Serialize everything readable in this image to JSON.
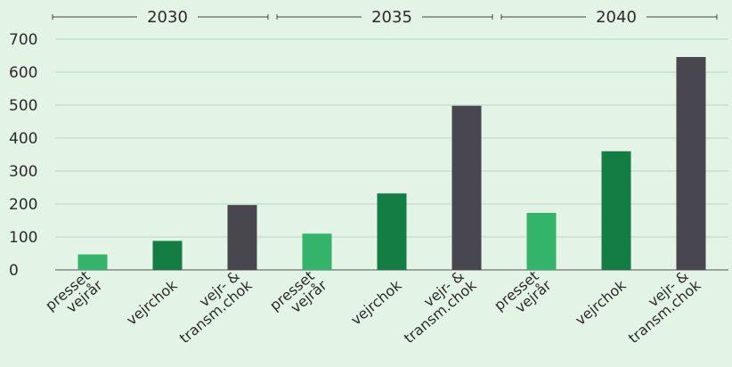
{
  "chart_data": {
    "type": "bar",
    "groups": [
      {
        "label": "2030",
        "categories": [
          "presset vejrår",
          "vejrchok",
          "vejr- & transm.chok"
        ],
        "values": [
          47,
          88,
          197
        ]
      },
      {
        "label": "2035",
        "categories": [
          "presset vejrår",
          "vejrchok",
          "vejr- & transm.chok"
        ],
        "values": [
          110,
          232,
          498
        ]
      },
      {
        "label": "2040",
        "categories": [
          "presset vejrår",
          "vejrchok",
          "vejr- & transm.chok"
        ],
        "values": [
          173,
          360,
          646
        ]
      }
    ],
    "category_labels": [
      [
        "presset",
        "vejrår"
      ],
      [
        "vejrchok"
      ],
      [
        "vejr- &",
        "transm.chok"
      ]
    ],
    "colors": [
      "#34b36b",
      "#137d44",
      "#48464f"
    ],
    "y_ticks": [
      0,
      100,
      200,
      300,
      400,
      500,
      600,
      700
    ],
    "ylim": [
      0,
      700
    ],
    "grid": true,
    "title": "",
    "xlabel": "",
    "ylabel": ""
  }
}
